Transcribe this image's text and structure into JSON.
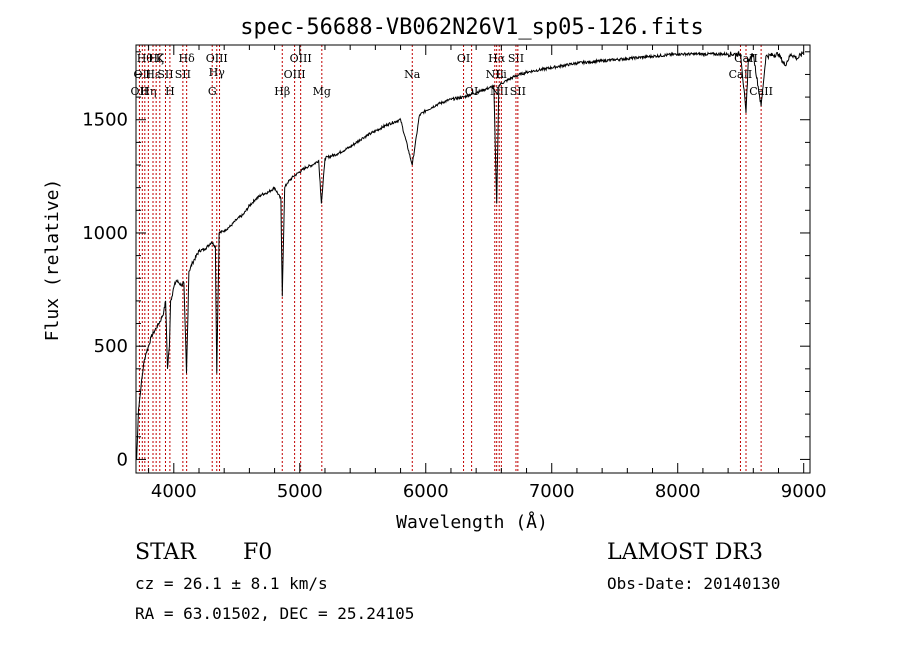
{
  "chart_data": {
    "type": "line",
    "title": "spec-56688-VB062N26V1_sp05-126.fits",
    "xlabel": "Wavelength (Å)",
    "ylabel": "Flux (relative)",
    "xlim": [
      3700,
      9050
    ],
    "ylim": [
      -60,
      1830
    ],
    "x_ticks": [
      4000,
      5000,
      6000,
      7000,
      8000,
      9000
    ],
    "x_tick_labels": [
      "4000",
      "5000",
      "6000",
      "7000",
      "8000",
      "9000"
    ],
    "y_ticks": [
      0,
      500,
      1000,
      1500
    ],
    "y_tick_labels": [
      "0",
      "500",
      "1000",
      "1500"
    ],
    "grid": false,
    "series": [
      {
        "name": "flux",
        "x": [
          3705,
          3720,
          3740,
          3760,
          3780,
          3800,
          3820,
          3840,
          3860,
          3880,
          3900,
          3920,
          3935,
          3950,
          3965,
          3975,
          3985,
          4000,
          4020,
          4040,
          4060,
          4080,
          4101,
          4120,
          4150,
          4200,
          4250,
          4300,
          4330,
          4341,
          4360,
          4400,
          4450,
          4500,
          4550,
          4600,
          4650,
          4700,
          4750,
          4800,
          4850,
          4861,
          4880,
          4900,
          4950,
          5000,
          5050,
          5100,
          5150,
          5172,
          5200,
          5300,
          5400,
          5500,
          5600,
          5700,
          5800,
          5893,
          5950,
          6000,
          6100,
          6200,
          6300,
          6400,
          6500,
          6540,
          6563,
          6580,
          6600,
          6700,
          6800,
          6900,
          7000,
          7200,
          7400,
          7600,
          7800,
          8000,
          8200,
          8400,
          8500,
          8542,
          8560,
          8600,
          8662,
          8700,
          8800,
          8850,
          8900,
          8950,
          9000
        ],
        "y": [
          0,
          220,
          320,
          420,
          470,
          500,
          540,
          560,
          580,
          600,
          620,
          650,
          700,
          400,
          500,
          700,
          720,
          760,
          790,
          780,
          770,
          780,
          380,
          830,
          870,
          920,
          930,
          960,
          940,
          380,
          1000,
          1010,
          1030,
          1060,
          1080,
          1120,
          1150,
          1170,
          1180,
          1200,
          1150,
          720,
          1200,
          1220,
          1250,
          1270,
          1290,
          1300,
          1320,
          1130,
          1330,
          1350,
          1380,
          1420,
          1450,
          1480,
          1500,
          1300,
          1520,
          1540,
          1570,
          1590,
          1600,
          1620,
          1640,
          1650,
          1130,
          1650,
          1660,
          1690,
          1710,
          1720,
          1730,
          1750,
          1760,
          1770,
          1780,
          1790,
          1790,
          1790,
          1790,
          1530,
          1760,
          1790,
          1560,
          1780,
          1790,
          1740,
          1790,
          1770,
          1800
        ]
      }
    ],
    "line_markers": [
      {
        "wavelength": 3727,
        "labels": [
          "OII"
        ],
        "row": 3
      },
      {
        "wavelength": 3750,
        "labels": [
          "OII"
        ],
        "row": 2
      },
      {
        "wavelength": 3770,
        "labels": [
          "Hθ"
        ],
        "row": 1
      },
      {
        "wavelength": 3798,
        "labels": [
          "Hη"
        ],
        "row": 3
      },
      {
        "wavelength": 3835,
        "labels": [
          "Hε"
        ],
        "row": 2
      },
      {
        "wavelength": 3860,
        "labels": [
          "Hζ"
        ],
        "row": 1
      },
      {
        "wavelength": 3889,
        "labels": [
          "K"
        ],
        "row": 1
      },
      {
        "wavelength": 3934,
        "labels": [
          "SII"
        ],
        "row": 2
      },
      {
        "wavelength": 3969,
        "labels": [
          "H"
        ],
        "row": 3
      },
      {
        "wavelength": 4072,
        "labels": [
          "SII"
        ],
        "row": 2
      },
      {
        "wavelength": 4102,
        "labels": [
          "Hδ"
        ],
        "row": 1
      },
      {
        "wavelength": 4305,
        "labels": [
          "G"
        ],
        "row": 3
      },
      {
        "wavelength": 4341,
        "labels": [
          "OIII",
          "Hγ"
        ],
        "row": 1
      },
      {
        "wavelength": 4363,
        "labels": [],
        "row": 0
      },
      {
        "wavelength": 4861,
        "labels": [
          "Hβ"
        ],
        "row": 3
      },
      {
        "wavelength": 4959,
        "labels": [
          "OIII"
        ],
        "row": 2
      },
      {
        "wavelength": 5007,
        "labels": [
          "OIII"
        ],
        "row": 1
      },
      {
        "wavelength": 5175,
        "labels": [
          "Mg"
        ],
        "row": 3
      },
      {
        "wavelength": 5893,
        "labels": [
          "Na"
        ],
        "row": 2
      },
      {
        "wavelength": 6300,
        "labels": [
          "OI"
        ],
        "row": 1
      },
      {
        "wavelength": 6364,
        "labels": [
          "OI"
        ],
        "row": 3
      },
      {
        "wavelength": 6548,
        "labels": [
          "NII"
        ],
        "row": 2
      },
      {
        "wavelength": 6563,
        "labels": [
          "Hα"
        ],
        "row": 1
      },
      {
        "wavelength": 6583,
        "labels": [
          "NII"
        ],
        "row": 3
      },
      {
        "wavelength": 6600,
        "labels": [
          "Li"
        ],
        "row": 2
      },
      {
        "wavelength": 6716,
        "labels": [
          "SII"
        ],
        "row": 1
      },
      {
        "wavelength": 6731,
        "labels": [
          "SII"
        ],
        "row": 3
      },
      {
        "wavelength": 8498,
        "labels": [
          "CaII"
        ],
        "row": 2
      },
      {
        "wavelength": 8542,
        "labels": [
          "CaII"
        ],
        "row": 1
      },
      {
        "wavelength": 8662,
        "labels": [
          "CaII"
        ],
        "row": 3
      }
    ]
  },
  "annotations": {
    "object_class": "STAR",
    "subclass": "F0",
    "survey": "LAMOST DR3",
    "redshift": "cz =  26.1 ± 8.1 km/s",
    "obs_date": "Obs-Date: 20140130",
    "coordinates": "RA =  63.01502, DEC =  25.24105"
  }
}
